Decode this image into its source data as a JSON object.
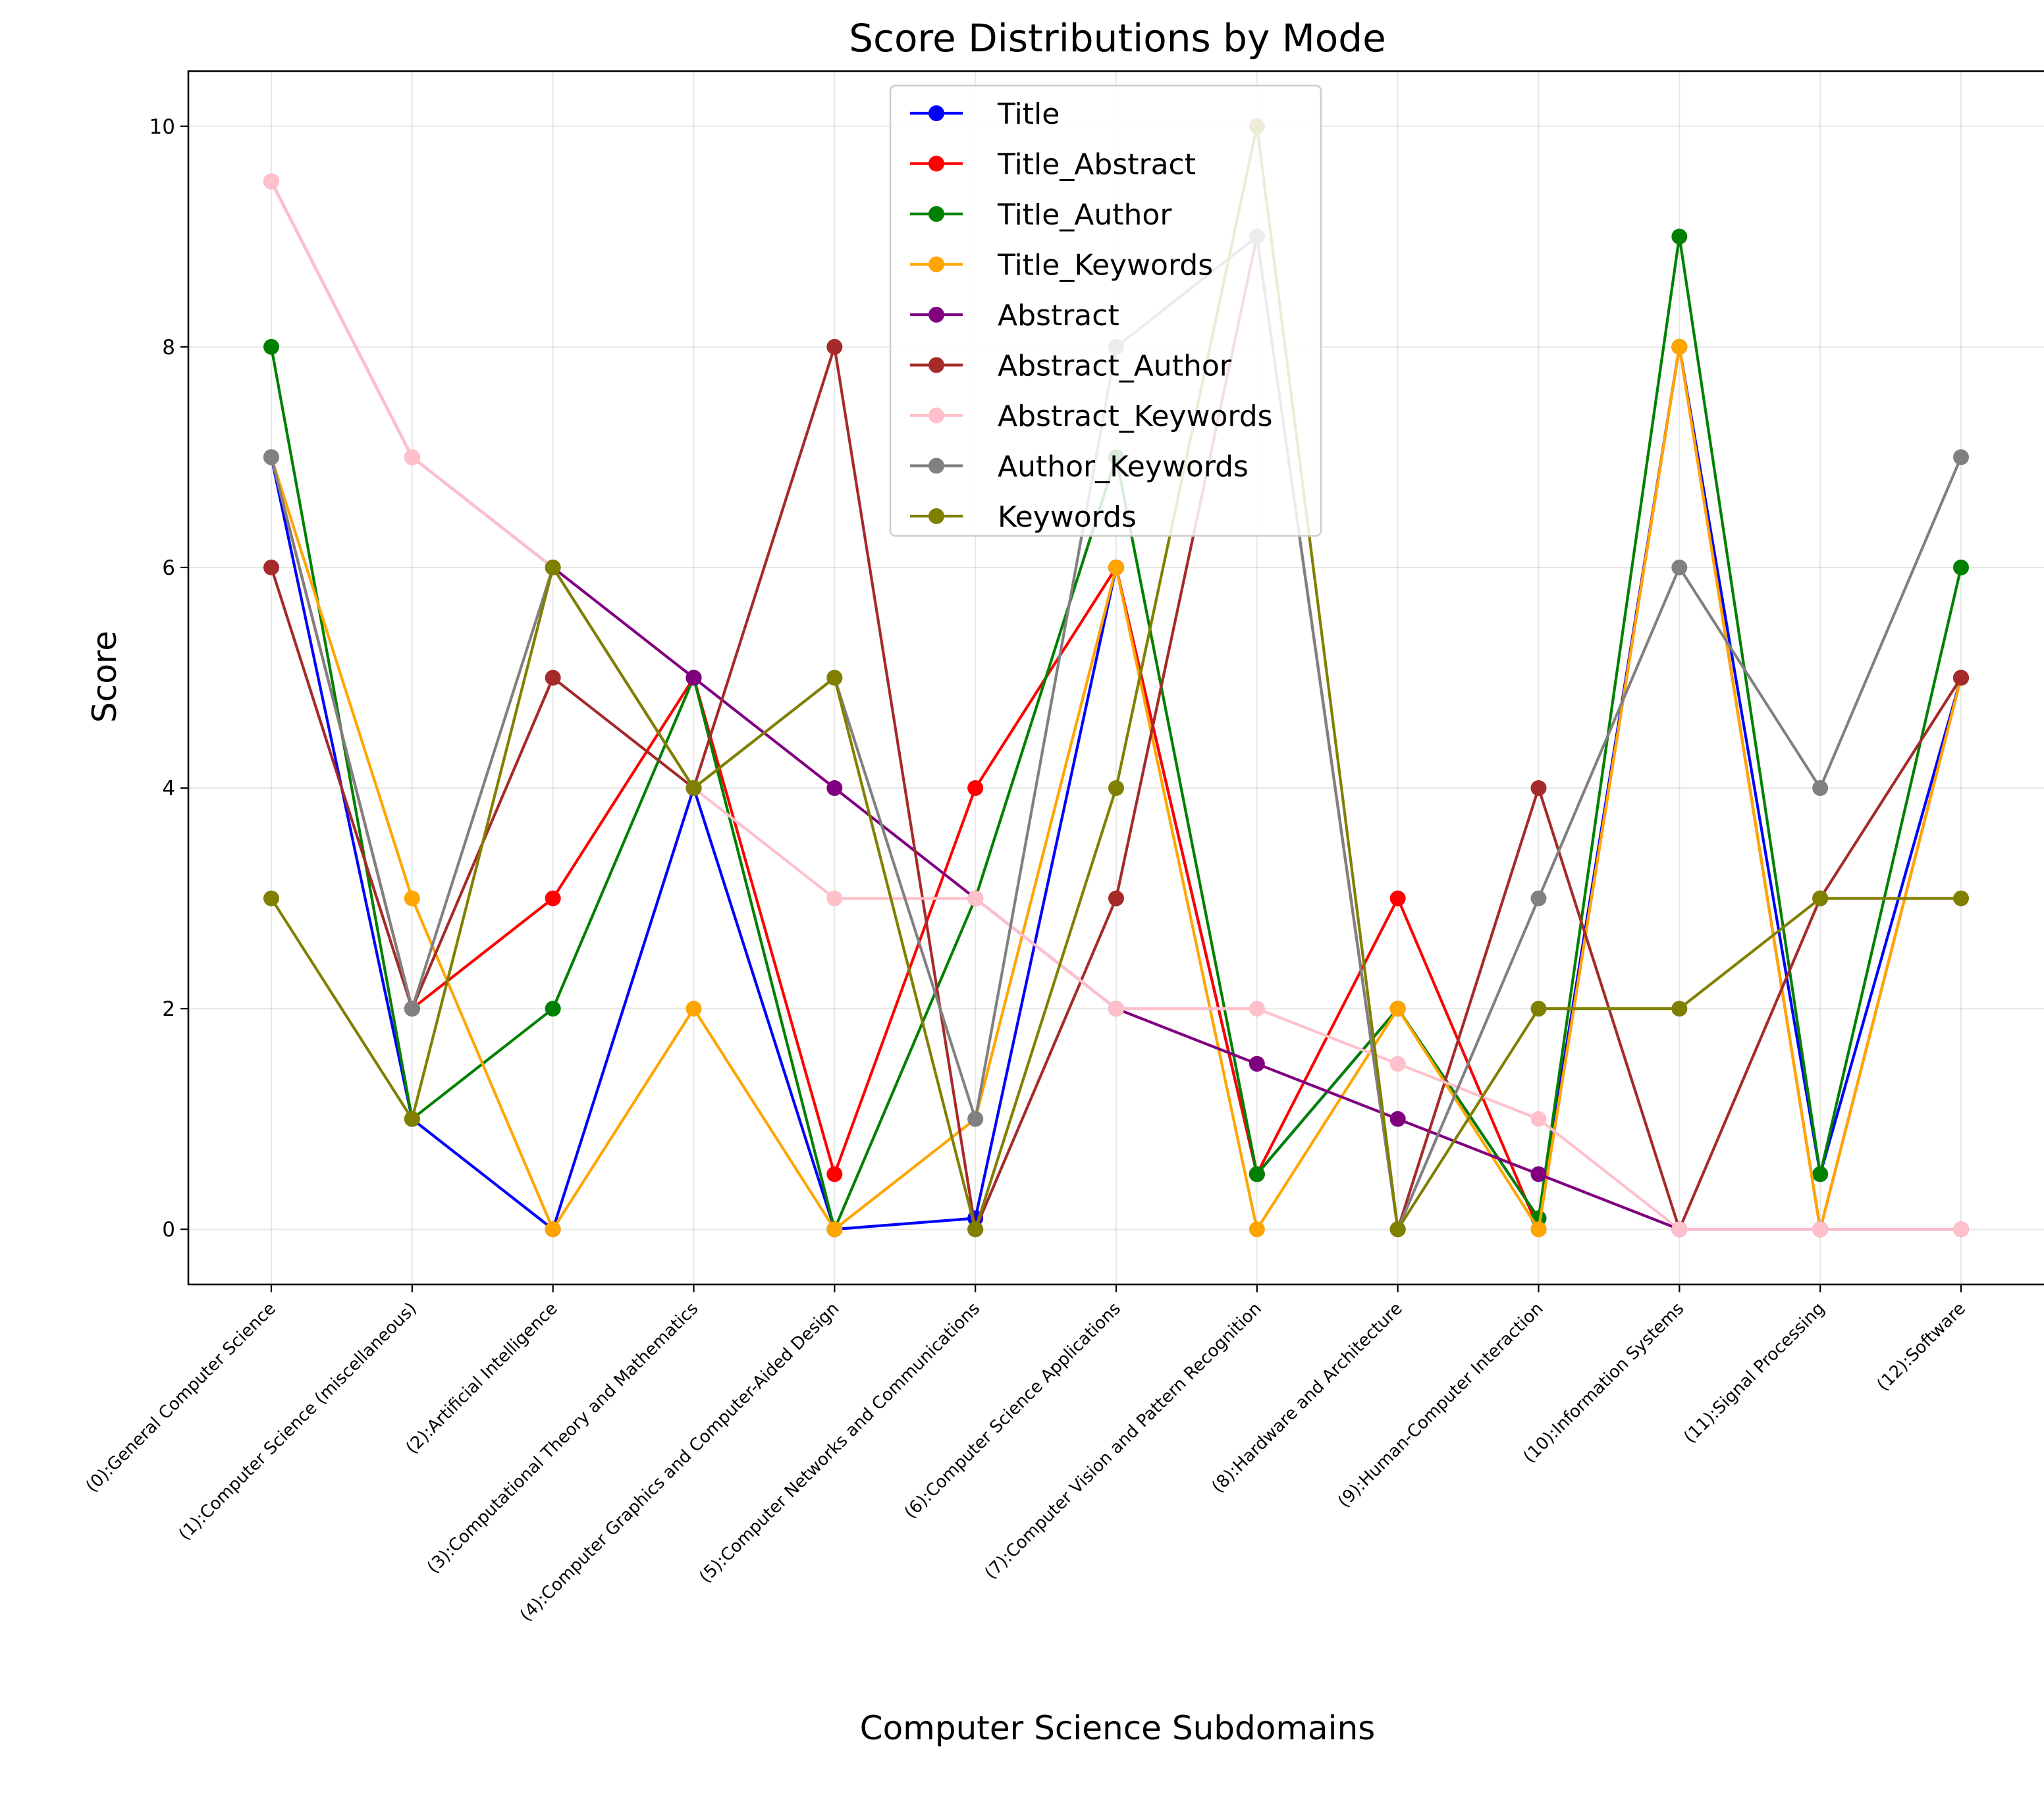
{
  "chart_data": {
    "type": "line",
    "title": "Score Distributions by Mode",
    "xlabel": "Computer Science Subdomains",
    "ylabel": "Score",
    "ylim": [
      -0.5,
      10.5
    ],
    "yticks": [
      "0",
      "2",
      "4",
      "6",
      "8",
      "10"
    ],
    "grid": true,
    "legend_position": "top-center",
    "categories": [
      "(0):General Computer Science",
      "(1):Computer Science (miscellaneous)",
      "(2):Artificial Intelligence",
      "(3):Computational Theory and Mathematics",
      "(4):Computer Graphics and Computer-Aided Design",
      "(5):Computer Networks and Communications",
      "(6):Computer Science Applications",
      "(7):Computer Vision and Pattern Recognition",
      "(8):Hardware and Architecture",
      "(9):Human-Computer Interaction",
      "(10):Information Systems",
      "(11):Signal Processing",
      "(12):Software"
    ],
    "series": [
      {
        "name": "Title",
        "color": "#0000ff",
        "values": [
          7,
          1,
          0,
          4,
          0,
          0.1,
          6,
          0.5,
          2,
          0.1,
          8,
          0.5,
          5
        ]
      },
      {
        "name": "Title_Abstract",
        "color": "#ff0000",
        "values": [
          7,
          2,
          3,
          5,
          0.5,
          4,
          6,
          0.5,
          3,
          0,
          8,
          0,
          5
        ]
      },
      {
        "name": "Title_Author",
        "color": "#008000",
        "values": [
          8,
          1,
          2,
          5,
          0,
          3,
          7,
          0.5,
          2,
          0.1,
          9,
          0.5,
          6
        ]
      },
      {
        "name": "Title_Keywords",
        "color": "#ffa500",
        "values": [
          7,
          3,
          0,
          2,
          0,
          1,
          6,
          0,
          2,
          0,
          8,
          0,
          5
        ]
      },
      {
        "name": "Abstract",
        "color": "#800080",
        "values": [
          9.5,
          7,
          6,
          5,
          4,
          3,
          2,
          1.5,
          1,
          0.5,
          0,
          0,
          0
        ]
      },
      {
        "name": "Abstract_Author",
        "color": "#a52a2a",
        "values": [
          6,
          2,
          5,
          4,
          8,
          0,
          3,
          9,
          0,
          4,
          0,
          3,
          5
        ]
      },
      {
        "name": "Abstract_Keywords",
        "color": "#ffc0cb",
        "values": [
          9.5,
          7,
          6,
          4,
          3,
          3,
          2,
          2,
          1.5,
          1,
          0,
          0,
          0
        ]
      },
      {
        "name": "Author_Keywords",
        "color": "#808080",
        "values": [
          7,
          2,
          6,
          4,
          5,
          1,
          8,
          9,
          0,
          3,
          6,
          4,
          7
        ]
      },
      {
        "name": "Keywords",
        "color": "#808000",
        "values": [
          3,
          1,
          6,
          4,
          5,
          0,
          4,
          10,
          0,
          2,
          2,
          3,
          3
        ]
      }
    ]
  }
}
